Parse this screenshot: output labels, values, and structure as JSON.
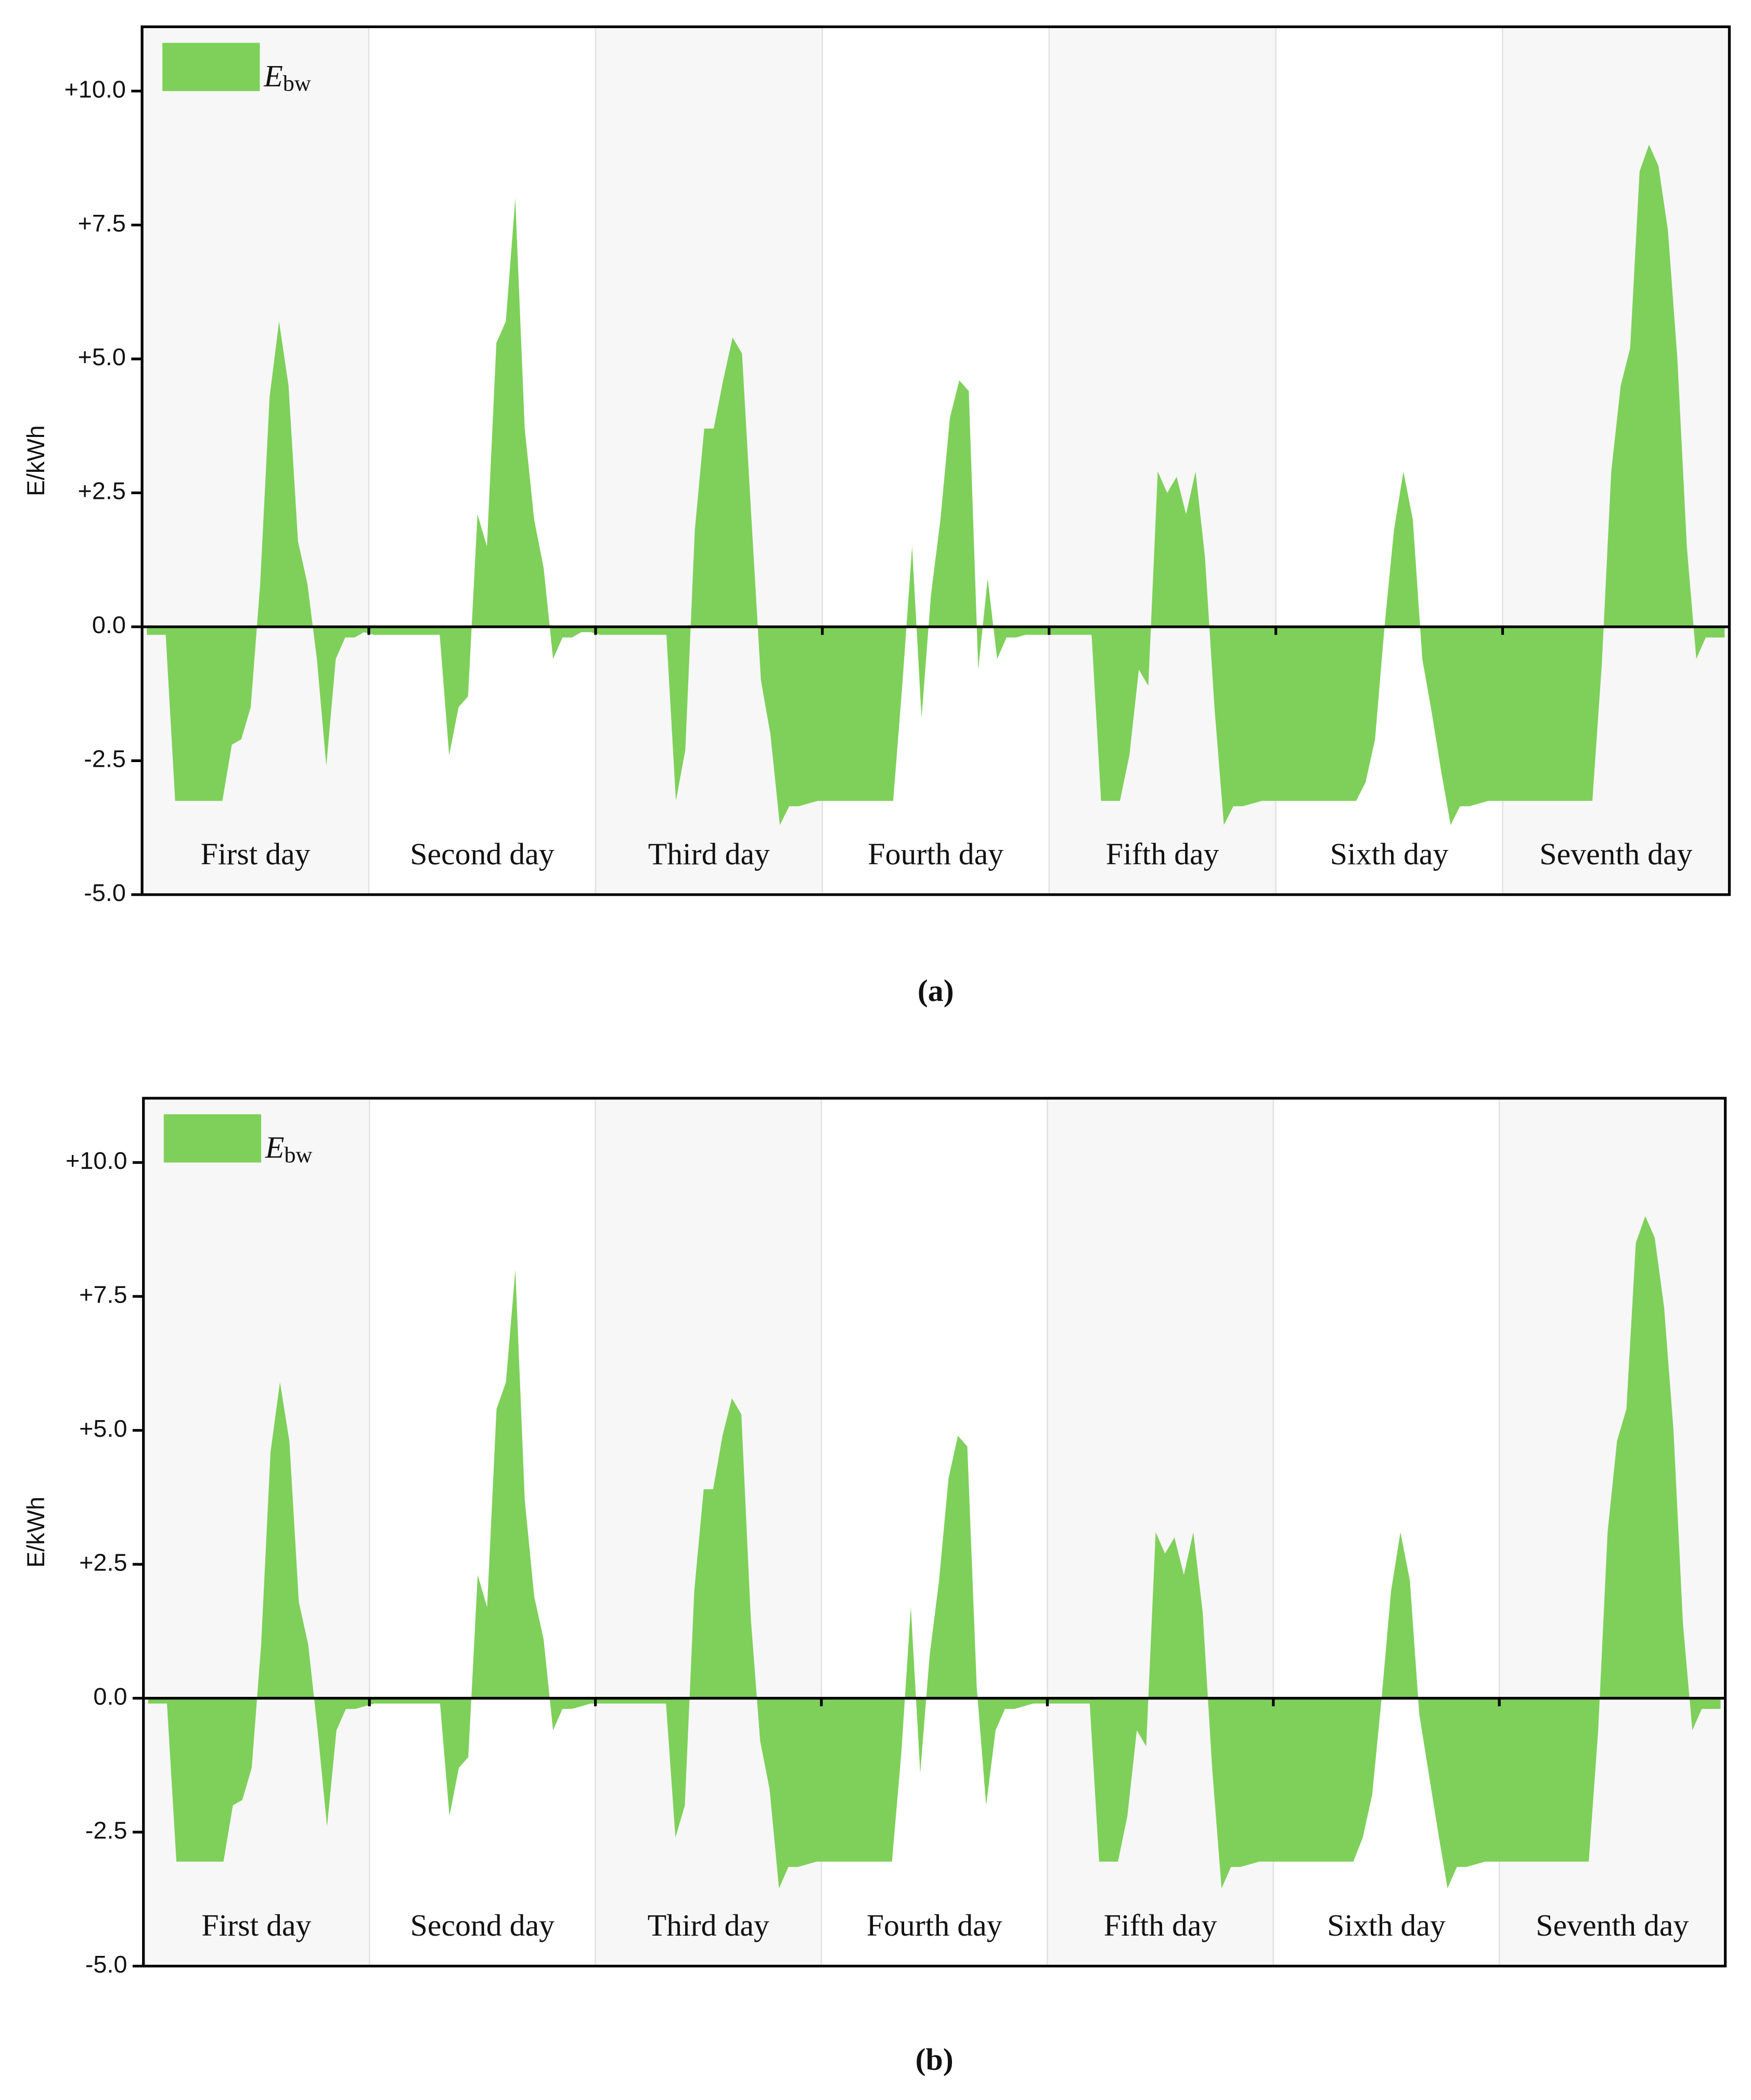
{
  "chart_data": [
    {
      "type": "area",
      "ylabel": "E/kWh",
      "caption": "(a)",
      "categories": [
        "First day",
        "Second day",
        "Third day",
        "Fourth day",
        "Fifth day",
        "Sixth day",
        "Seventh day"
      ],
      "series": [
        {
          "name": "E",
          "name_sub": "bw",
          "color": "#7ed05a",
          "values": [
            [
              -0.15,
              -0.15,
              -0.15,
              -3.25,
              -3.25,
              -3.25,
              -3.25,
              -3.25,
              -3.25,
              -2.2,
              -2.1,
              -1.5,
              0.8,
              4.3,
              5.7,
              4.5,
              1.6,
              0.8,
              -0.6,
              -2.6,
              -0.6,
              -0.2,
              -0.2,
              -0.1
            ],
            [
              -0.15,
              -0.15,
              -0.15,
              -0.15,
              -0.15,
              -0.15,
              -0.15,
              -0.15,
              -2.4,
              -1.5,
              -1.3,
              2.1,
              1.5,
              5.3,
              5.7,
              8.0,
              3.7,
              2.0,
              1.1,
              -0.6,
              -0.2,
              -0.2,
              -0.1,
              -0.1
            ],
            [
              -0.15,
              -0.15,
              -0.15,
              -0.15,
              -0.15,
              -0.15,
              -0.15,
              -0.15,
              -3.25,
              -2.3,
              1.8,
              3.7,
              3.7,
              4.6,
              5.4,
              5.1,
              2.0,
              -1.0,
              -2.0,
              -3.7,
              -3.35,
              -3.35,
              -3.3,
              -3.25
            ],
            [
              -3.25,
              -3.25,
              -3.25,
              -3.25,
              -3.25,
              -3.25,
              -3.25,
              -3.25,
              -1.0,
              1.5,
              -1.7,
              0.6,
              2.0,
              3.9,
              4.6,
              4.4,
              -0.8,
              0.9,
              -0.6,
              -0.2,
              -0.2,
              -0.15,
              -0.15,
              -0.15
            ],
            [
              -0.15,
              -0.15,
              -0.15,
              -0.15,
              -0.15,
              -3.25,
              -3.25,
              -3.25,
              -2.4,
              -0.8,
              -1.1,
              2.9,
              2.5,
              2.8,
              2.1,
              2.9,
              1.3,
              -1.5,
              -3.7,
              -3.35,
              -3.35,
              -3.3,
              -3.25,
              -3.25
            ],
            [
              -3.25,
              -3.25,
              -3.25,
              -3.25,
              -3.25,
              -3.25,
              -3.25,
              -3.25,
              -3.25,
              -2.9,
              -2.1,
              0.0,
              1.8,
              2.9,
              2.0,
              -0.6,
              -1.6,
              -2.7,
              -3.7,
              -3.35,
              -3.35,
              -3.3,
              -3.25,
              -3.25
            ],
            [
              -3.25,
              -3.25,
              -3.25,
              -3.25,
              -3.25,
              -3.25,
              -3.25,
              -3.25,
              -3.25,
              -3.25,
              -0.7,
              2.9,
              4.5,
              5.2,
              8.5,
              9.0,
              8.6,
              7.4,
              5.0,
              1.5,
              -0.6,
              -0.2,
              -0.2,
              -0.2
            ]
          ]
        }
      ],
      "ylim": [
        -5,
        11.2
      ],
      "yticks": [
        {
          "value": -5,
          "label": "-5.0"
        },
        {
          "value": -2.5,
          "label": "-2.5"
        },
        {
          "value": 0,
          "label": "0.0"
        },
        {
          "value": 2.5,
          "label": "+2.5"
        },
        {
          "value": 5,
          "label": "+5.0"
        },
        {
          "value": 7.5,
          "label": "+7.5"
        },
        {
          "value": 10,
          "label": "+10.0"
        }
      ],
      "bands": true,
      "band_color": "#f7f7f7",
      "legend": "upper left"
    },
    {
      "type": "area",
      "ylabel": "E/kWh",
      "caption": "(b)",
      "categories": [
        "First day",
        "Second day",
        "Third day",
        "Fourth day",
        "Fifth day",
        "Sixth day",
        "Seventh day"
      ],
      "series": [
        {
          "name": "E",
          "name_sub": "bw",
          "color": "#7ed05a",
          "values": [
            [
              -0.1,
              -0.1,
              -0.1,
              -3.05,
              -3.05,
              -3.05,
              -3.05,
              -3.05,
              -3.05,
              -2.0,
              -1.9,
              -1.3,
              1.0,
              4.6,
              5.9,
              4.8,
              1.8,
              1.0,
              -0.6,
              -2.4,
              -0.6,
              -0.2,
              -0.2,
              -0.15
            ],
            [
              -0.1,
              -0.1,
              -0.1,
              -0.1,
              -0.1,
              -0.1,
              -0.1,
              -0.1,
              -2.2,
              -1.3,
              -1.1,
              2.3,
              1.7,
              5.4,
              5.9,
              8.0,
              3.7,
              1.9,
              1.1,
              -0.6,
              -0.2,
              -0.2,
              -0.15,
              -0.1
            ],
            [
              -0.1,
              -0.1,
              -0.1,
              -0.1,
              -0.1,
              -0.1,
              -0.1,
              -0.1,
              -2.6,
              -2.0,
              2.0,
              3.9,
              3.9,
              4.9,
              5.6,
              5.3,
              1.5,
              -0.8,
              -1.7,
              -3.55,
              -3.15,
              -3.15,
              -3.1,
              -3.05
            ],
            [
              -3.05,
              -3.05,
              -3.05,
              -3.05,
              -3.05,
              -3.05,
              -3.05,
              -3.05,
              -1.0,
              1.7,
              -1.4,
              0.8,
              2.2,
              4.1,
              4.9,
              4.7,
              0.2,
              -2.0,
              -0.6,
              -0.2,
              -0.2,
              -0.15,
              -0.1,
              -0.1
            ],
            [
              -0.1,
              -0.1,
              -0.1,
              -0.1,
              -0.1,
              -3.05,
              -3.05,
              -3.05,
              -2.2,
              -0.6,
              -0.9,
              3.1,
              2.7,
              3.0,
              2.3,
              3.1,
              1.6,
              -1.3,
              -3.55,
              -3.15,
              -3.15,
              -3.1,
              -3.05,
              -3.05
            ],
            [
              -3.05,
              -3.05,
              -3.05,
              -3.05,
              -3.05,
              -3.05,
              -3.05,
              -3.05,
              -3.05,
              -2.6,
              -1.8,
              0.0,
              2.0,
              3.1,
              2.2,
              -0.3,
              -1.4,
              -2.5,
              -3.55,
              -3.15,
              -3.15,
              -3.1,
              -3.05,
              -3.05
            ],
            [
              -3.05,
              -3.05,
              -3.05,
              -3.05,
              -3.05,
              -3.05,
              -3.05,
              -3.05,
              -3.05,
              -3.05,
              -0.6,
              3.1,
              4.8,
              5.4,
              8.5,
              9.0,
              8.6,
              7.3,
              5.0,
              1.4,
              -0.6,
              -0.2,
              -0.2,
              -0.2
            ]
          ]
        }
      ],
      "ylim": [
        -5,
        11.2
      ],
      "yticks": [
        {
          "value": -5,
          "label": "-5.0"
        },
        {
          "value": -2.5,
          "label": "-2.5"
        },
        {
          "value": 0,
          "label": "0.0"
        },
        {
          "value": 2.5,
          "label": "+2.5"
        },
        {
          "value": 5,
          "label": "+5.0"
        },
        {
          "value": 7.5,
          "label": "+7.5"
        },
        {
          "value": 10,
          "label": "+10.0"
        }
      ],
      "bands": true,
      "band_color": "#f7f7f7",
      "legend": "upper left"
    }
  ]
}
